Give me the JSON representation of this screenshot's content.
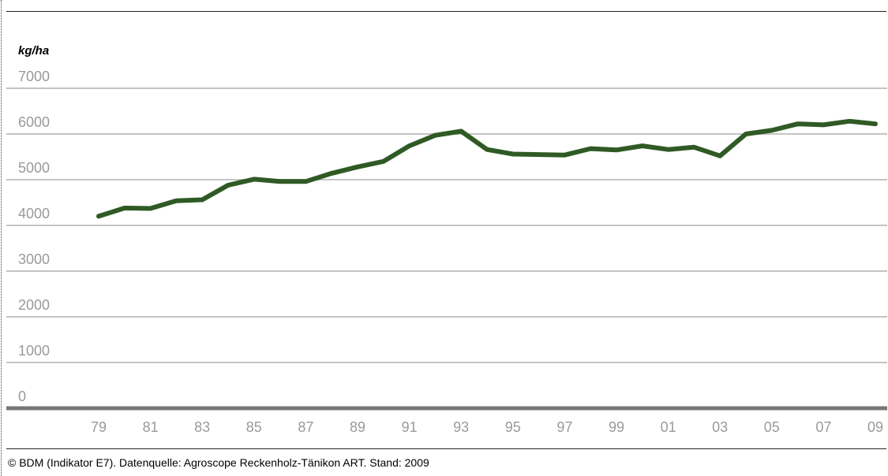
{
  "chart_data": {
    "type": "line",
    "ylabel": "kg/ha",
    "ylim": [
      0,
      7000
    ],
    "yticks": [
      "0",
      "1000",
      "2000",
      "3000",
      "4000",
      "5000",
      "6000",
      "7000"
    ],
    "xtick_labels": [
      "79",
      "81",
      "83",
      "85",
      "87",
      "89",
      "91",
      "93",
      "95",
      "97",
      "99",
      "01",
      "03",
      "05",
      "07",
      "09"
    ],
    "grid": true,
    "line_color": "#2f5a24",
    "series": [
      {
        "x": [
          1979,
          1980,
          1981,
          1982,
          1983,
          1984,
          1985,
          1986,
          1987,
          1988,
          1989,
          1990,
          1991,
          1992,
          1993,
          1994,
          1995,
          1996,
          1997,
          1998,
          1999,
          2000,
          2001,
          2002,
          2003,
          2004,
          2005,
          2006,
          2007,
          2008,
          2009
        ],
        "values": [
          4200,
          4380,
          4370,
          4540,
          4560,
          4880,
          5010,
          4960,
          4960,
          5140,
          5280,
          5400,
          5740,
          5970,
          6060,
          5660,
          5560,
          5550,
          5540,
          5680,
          5650,
          5740,
          5660,
          5710,
          5520,
          6000,
          6080,
          6220,
          6200,
          6280,
          6220
        ]
      }
    ]
  },
  "footer": "©  BDM (Indikator E7). Datenquelle: Agroscope Reckenholz-Tänikon ART. Stand: 2009"
}
